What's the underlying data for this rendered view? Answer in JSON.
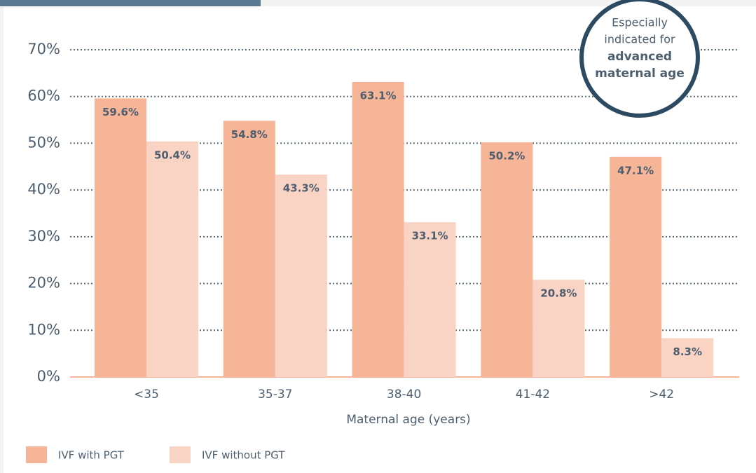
{
  "chart_data": {
    "type": "bar",
    "categories": [
      "<35",
      "35-37",
      "38-40",
      "41-42",
      ">42"
    ],
    "series": [
      {
        "name": "IVF with PGT",
        "color": "#f7b597",
        "values": [
          59.6,
          54.8,
          63.1,
          50.2,
          47.1
        ],
        "value_labels": [
          "59.6%",
          "54.8%",
          "63.1%",
          "50.2%",
          "47.1%"
        ]
      },
      {
        "name": "IVF without PGT",
        "color": "#f9d4c4",
        "values": [
          50.4,
          43.3,
          33.1,
          20.8,
          8.3
        ],
        "value_labels": [
          "50.4%",
          "43.3%",
          "33.1%",
          "20.8%",
          "8.3%"
        ]
      }
    ],
    "x_label": "Maternal age (years)",
    "ylim": [
      0,
      70
    ],
    "yticks": [
      {
        "value": 0,
        "label": "0%"
      },
      {
        "value": 10,
        "label": "10%"
      },
      {
        "value": 20,
        "label": "20%"
      },
      {
        "value": 30,
        "label": "30%"
      },
      {
        "value": 40,
        "label": "40%"
      },
      {
        "value": 50,
        "label": "50%"
      },
      {
        "value": 60,
        "label": "60%"
      },
      {
        "value": 70,
        "label": "70%"
      }
    ],
    "grid": true,
    "legend": "bottom-left",
    "annotation": {
      "lines": [
        "Especially",
        "indicated for"
      ],
      "bold_lines": [
        "advanced",
        "maternal age"
      ]
    }
  }
}
